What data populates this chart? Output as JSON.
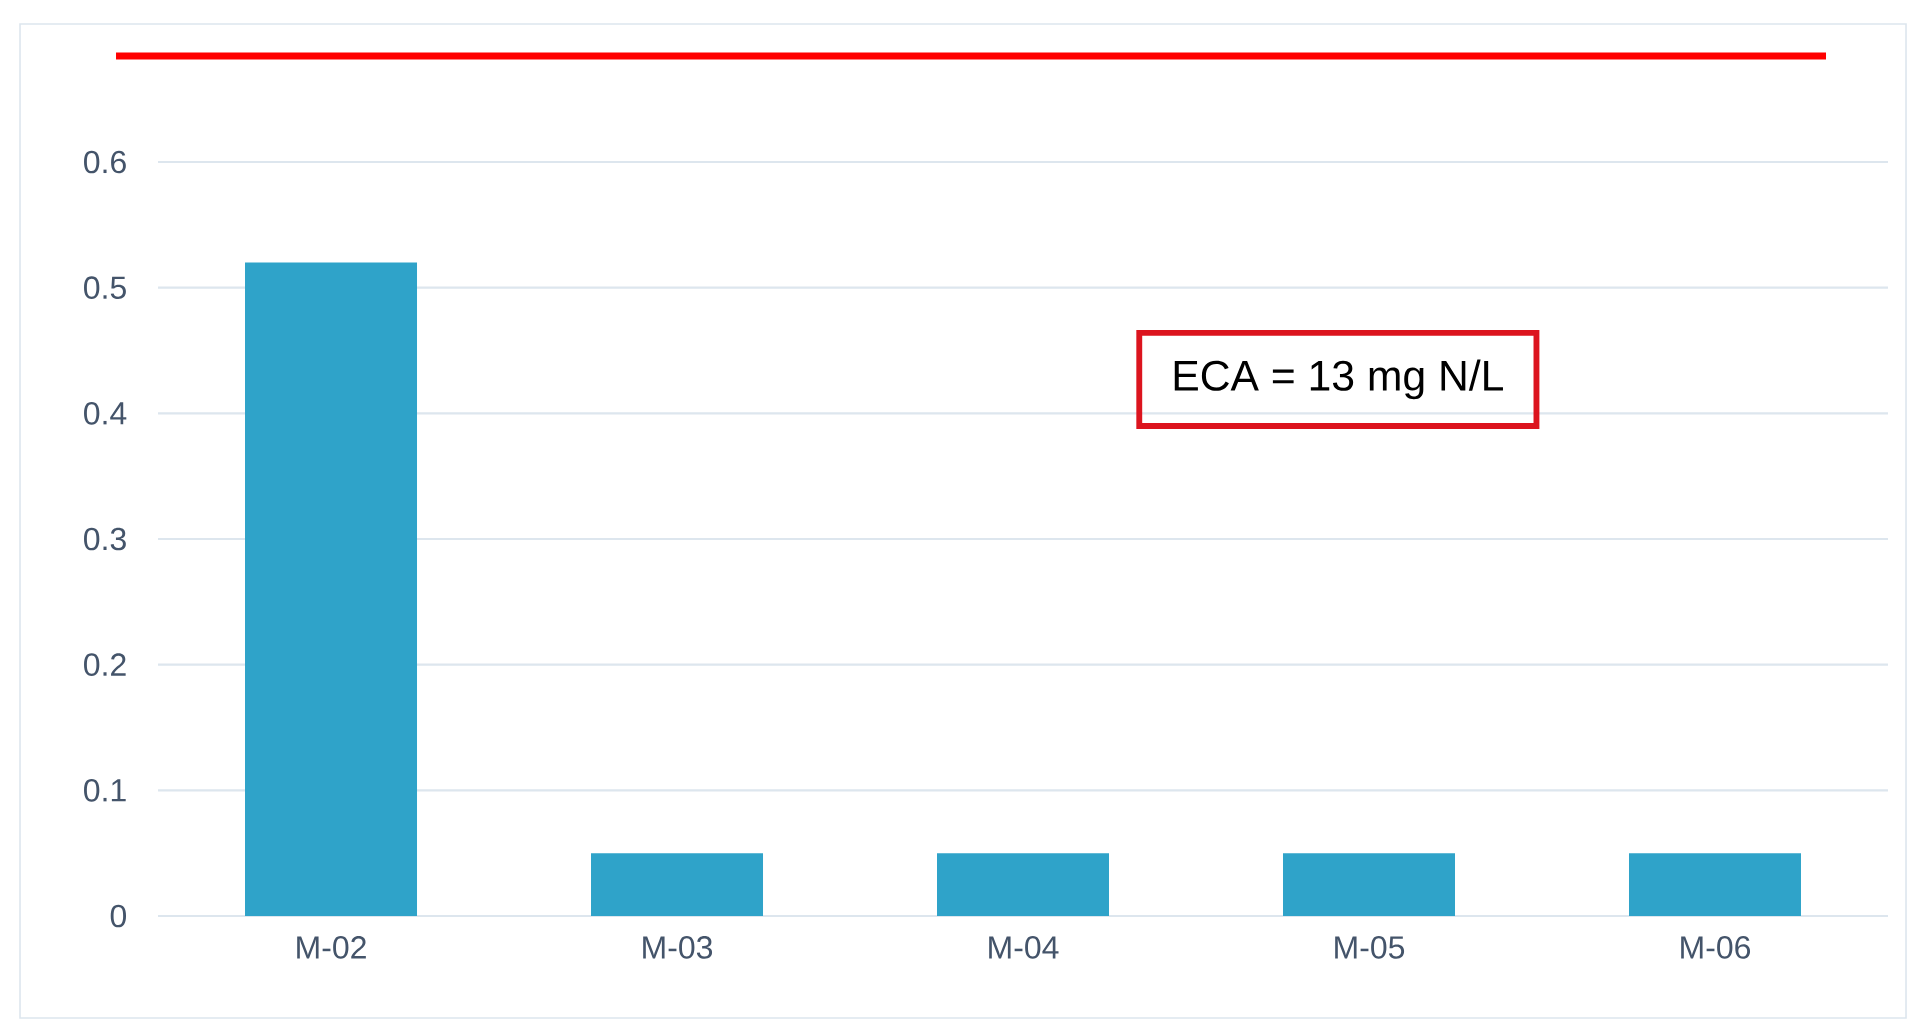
{
  "chart_data": {
    "type": "bar",
    "categories": [
      "M-02",
      "M-03",
      "M-04",
      "M-05",
      "M-06"
    ],
    "values": [
      0.52,
      0.05,
      0.05,
      0.05,
      0.05
    ],
    "color": "#2fa3c9",
    "ylim": [
      0,
      0.6
    ],
    "yticks": [
      0,
      0.1,
      0.2,
      0.3,
      0.4,
      0.5,
      0.6
    ],
    "grid": "y",
    "annotations": [
      "ECA = 13 mg N/L"
    ]
  }
}
